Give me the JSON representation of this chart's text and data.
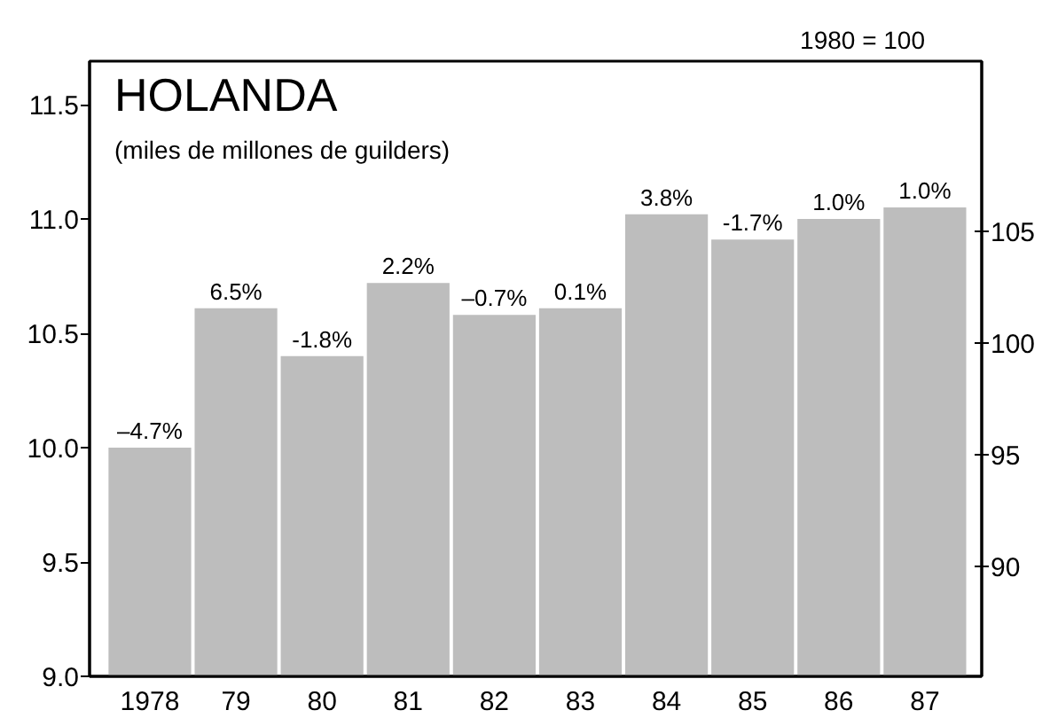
{
  "chart_data": {
    "type": "bar",
    "title": "HOLANDA",
    "subtitle": "(miles de millones de guilders)",
    "y2label": "1980 = 100",
    "categories": [
      "1978",
      "79",
      "80",
      "81",
      "82",
      "83",
      "84",
      "85",
      "86",
      "87"
    ],
    "values": [
      10.0,
      10.61,
      10.4,
      10.72,
      10.58,
      10.61,
      11.02,
      10.91,
      11.0,
      11.05
    ],
    "color": "#bdbdbd",
    "annotations": [
      {
        "text": "–4.7%",
        "x": "1978",
        "y": 10.0
      },
      {
        "text": "6.5%",
        "x": "79",
        "y": 10.61
      },
      {
        "text": "-1.8%",
        "x": "80",
        "y": 10.4
      },
      {
        "text": "2.2%",
        "x": "81",
        "y": 10.72
      },
      {
        "text": "–0.7%",
        "x": "82",
        "y": 10.58
      },
      {
        "text": "0.1%",
        "x": "83",
        "y": 10.61
      },
      {
        "text": "3.8%",
        "x": "84",
        "y": 11.02
      },
      {
        "text": "-1.7%",
        "x": "85",
        "y": 10.91
      },
      {
        "text": "1.0%",
        "x": "86",
        "y": 11.0
      },
      {
        "text": "1.0%",
        "x": "87",
        "y": 11.05
      }
    ],
    "ylim": [
      9.0,
      11.69
    ],
    "yticks": [
      {
        "value": 9,
        "label": "9.0"
      },
      9.5,
      {
        "value": 10,
        "label": "10.0"
      },
      10.5,
      {
        "value": 11,
        "label": "11.0"
      },
      11.5
    ],
    "y2lim": [
      85.1,
      112.6
    ],
    "y2ticks": [
      90,
      95,
      100,
      105
    ],
    "grid": false
  }
}
